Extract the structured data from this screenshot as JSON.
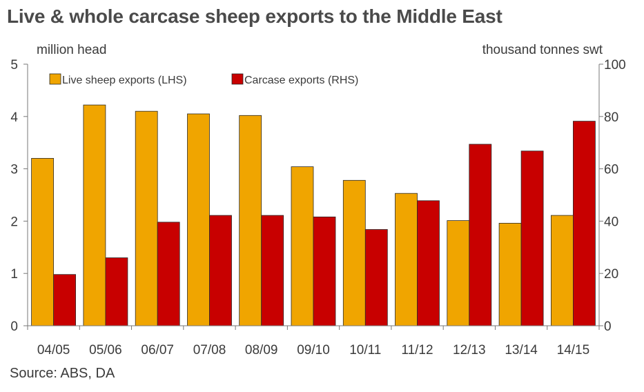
{
  "chart_data": {
    "type": "bar",
    "title": "Live & whole carcase sheep exports to the Middle East",
    "left_axis_label": "million head",
    "right_axis_label": "thousand tonnes swt",
    "source": "Source: ABS, DA",
    "categories": [
      "04/05",
      "05/06",
      "06/07",
      "07/08",
      "08/09",
      "09/10",
      "10/11",
      "11/12",
      "12/13",
      "13/14",
      "14/15"
    ],
    "left_ylim": [
      0,
      5
    ],
    "left_ticks": [
      "0",
      "1",
      "2",
      "3",
      "4",
      "5"
    ],
    "right_ylim": [
      0,
      100
    ],
    "right_ticks": [
      "0",
      "20",
      "40",
      "60",
      "80",
      "100"
    ],
    "grid": false,
    "legend_position": "top-left",
    "series": [
      {
        "name": "Live sheep exports (LHS)",
        "axis": "left",
        "color": "#f0a500",
        "values": [
          3.2,
          4.22,
          4.1,
          4.05,
          4.02,
          3.04,
          2.78,
          2.53,
          2.01,
          1.96,
          2.11
        ]
      },
      {
        "name": "Carcase exports (RHS)",
        "axis": "right",
        "color": "#c80000",
        "values": [
          19.6,
          26.0,
          39.6,
          42.2,
          42.2,
          41.6,
          36.8,
          47.8,
          69.4,
          66.8,
          78.2
        ]
      }
    ]
  }
}
